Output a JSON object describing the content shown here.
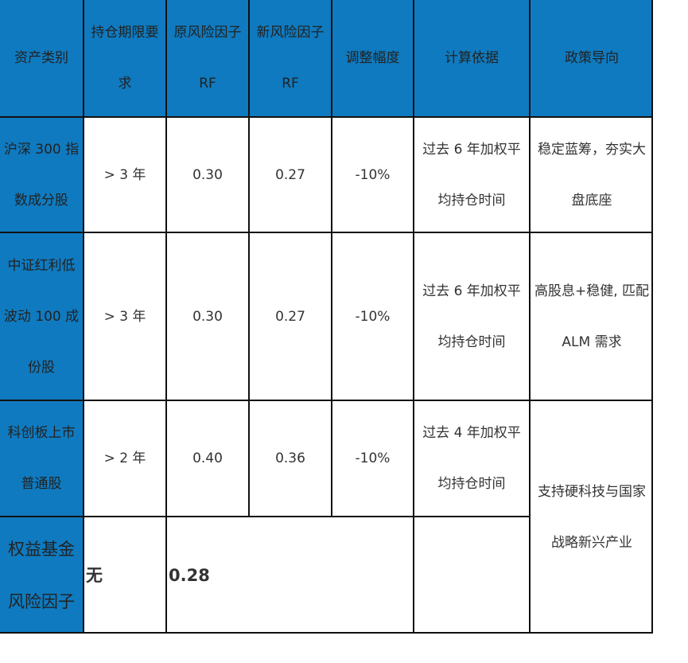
{
  "table": {
    "headers": {
      "asset_class": "资产类别",
      "holding_requirement": "持仓期限要\n求",
      "original_risk_factor": "原风险因子\nRF",
      "new_risk_factor": "新风险因子\nRF",
      "adjustment": "调整幅度",
      "basis": "计算依据",
      "policy": "政策导向"
    },
    "rows": [
      {
        "asset_class": "沪深 300 指\n数成分股",
        "holding_requirement": "> 3 年",
        "original_risk_factor": "0.30",
        "new_risk_factor": "0.27",
        "adjustment": "-10%",
        "basis": "过去 6 年加权平\n均持仓时间",
        "policy": "稳定蓝筹，夯实大\n盘底座"
      },
      {
        "asset_class": "中证红利低\n波动 100 成\n份股",
        "holding_requirement": "> 3 年",
        "original_risk_factor": "0.30",
        "new_risk_factor": "0.27",
        "adjustment": "-10%",
        "basis": "过去 6 年加权平\n均持仓时间",
        "policy": "高股息+稳健, 匹配\nALM 需求"
      },
      {
        "asset_class": "科创板上市\n普通股",
        "holding_requirement": "> 2 年",
        "original_risk_factor": "0.40",
        "new_risk_factor": "0.36",
        "adjustment": "-10%",
        "basis": "过去 4 年加权平\n均持仓时间",
        "policy": "支持硬科技与国家\n战略新兴产业"
      },
      {
        "asset_class": "权益基金\n风险因子",
        "holding_requirement": "无",
        "merged_value": "0.28"
      }
    ]
  }
}
